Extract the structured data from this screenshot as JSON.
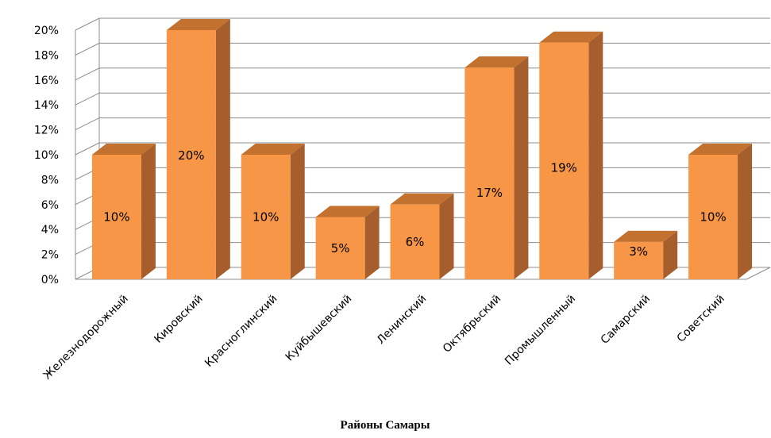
{
  "chart_data": {
    "type": "bar",
    "title": "",
    "xlabel": "Районы  Самары",
    "ylabel": "",
    "categories": [
      "Железнодорожный",
      "Кировский",
      "Красноглинский",
      "Куйбышевский",
      "Ленинский",
      "Октябрьский",
      "Промышленный",
      "Самарский",
      "Советский"
    ],
    "values": [
      10,
      20,
      10,
      5,
      6,
      17,
      19,
      3,
      10
    ],
    "data_labels": [
      "10%",
      "20%",
      "10%",
      "5%",
      "6%",
      "17%",
      "19%",
      "3%",
      "10%"
    ],
    "ylim": [
      0,
      20
    ],
    "yticks": [
      0,
      2,
      4,
      6,
      8,
      10,
      12,
      14,
      16,
      18,
      20
    ],
    "ytick_labels": [
      "0%",
      "2%",
      "4%",
      "6%",
      "8%",
      "10%",
      "12%",
      "14%",
      "16%",
      "18%",
      "20%"
    ],
    "grid": true,
    "legend": "none",
    "style": "3d-column",
    "colors": {
      "bar_front": "#F79646",
      "bar_side": "#A65E2C",
      "bar_top": "#C2712F",
      "grid": "#8C8C8C"
    }
  }
}
